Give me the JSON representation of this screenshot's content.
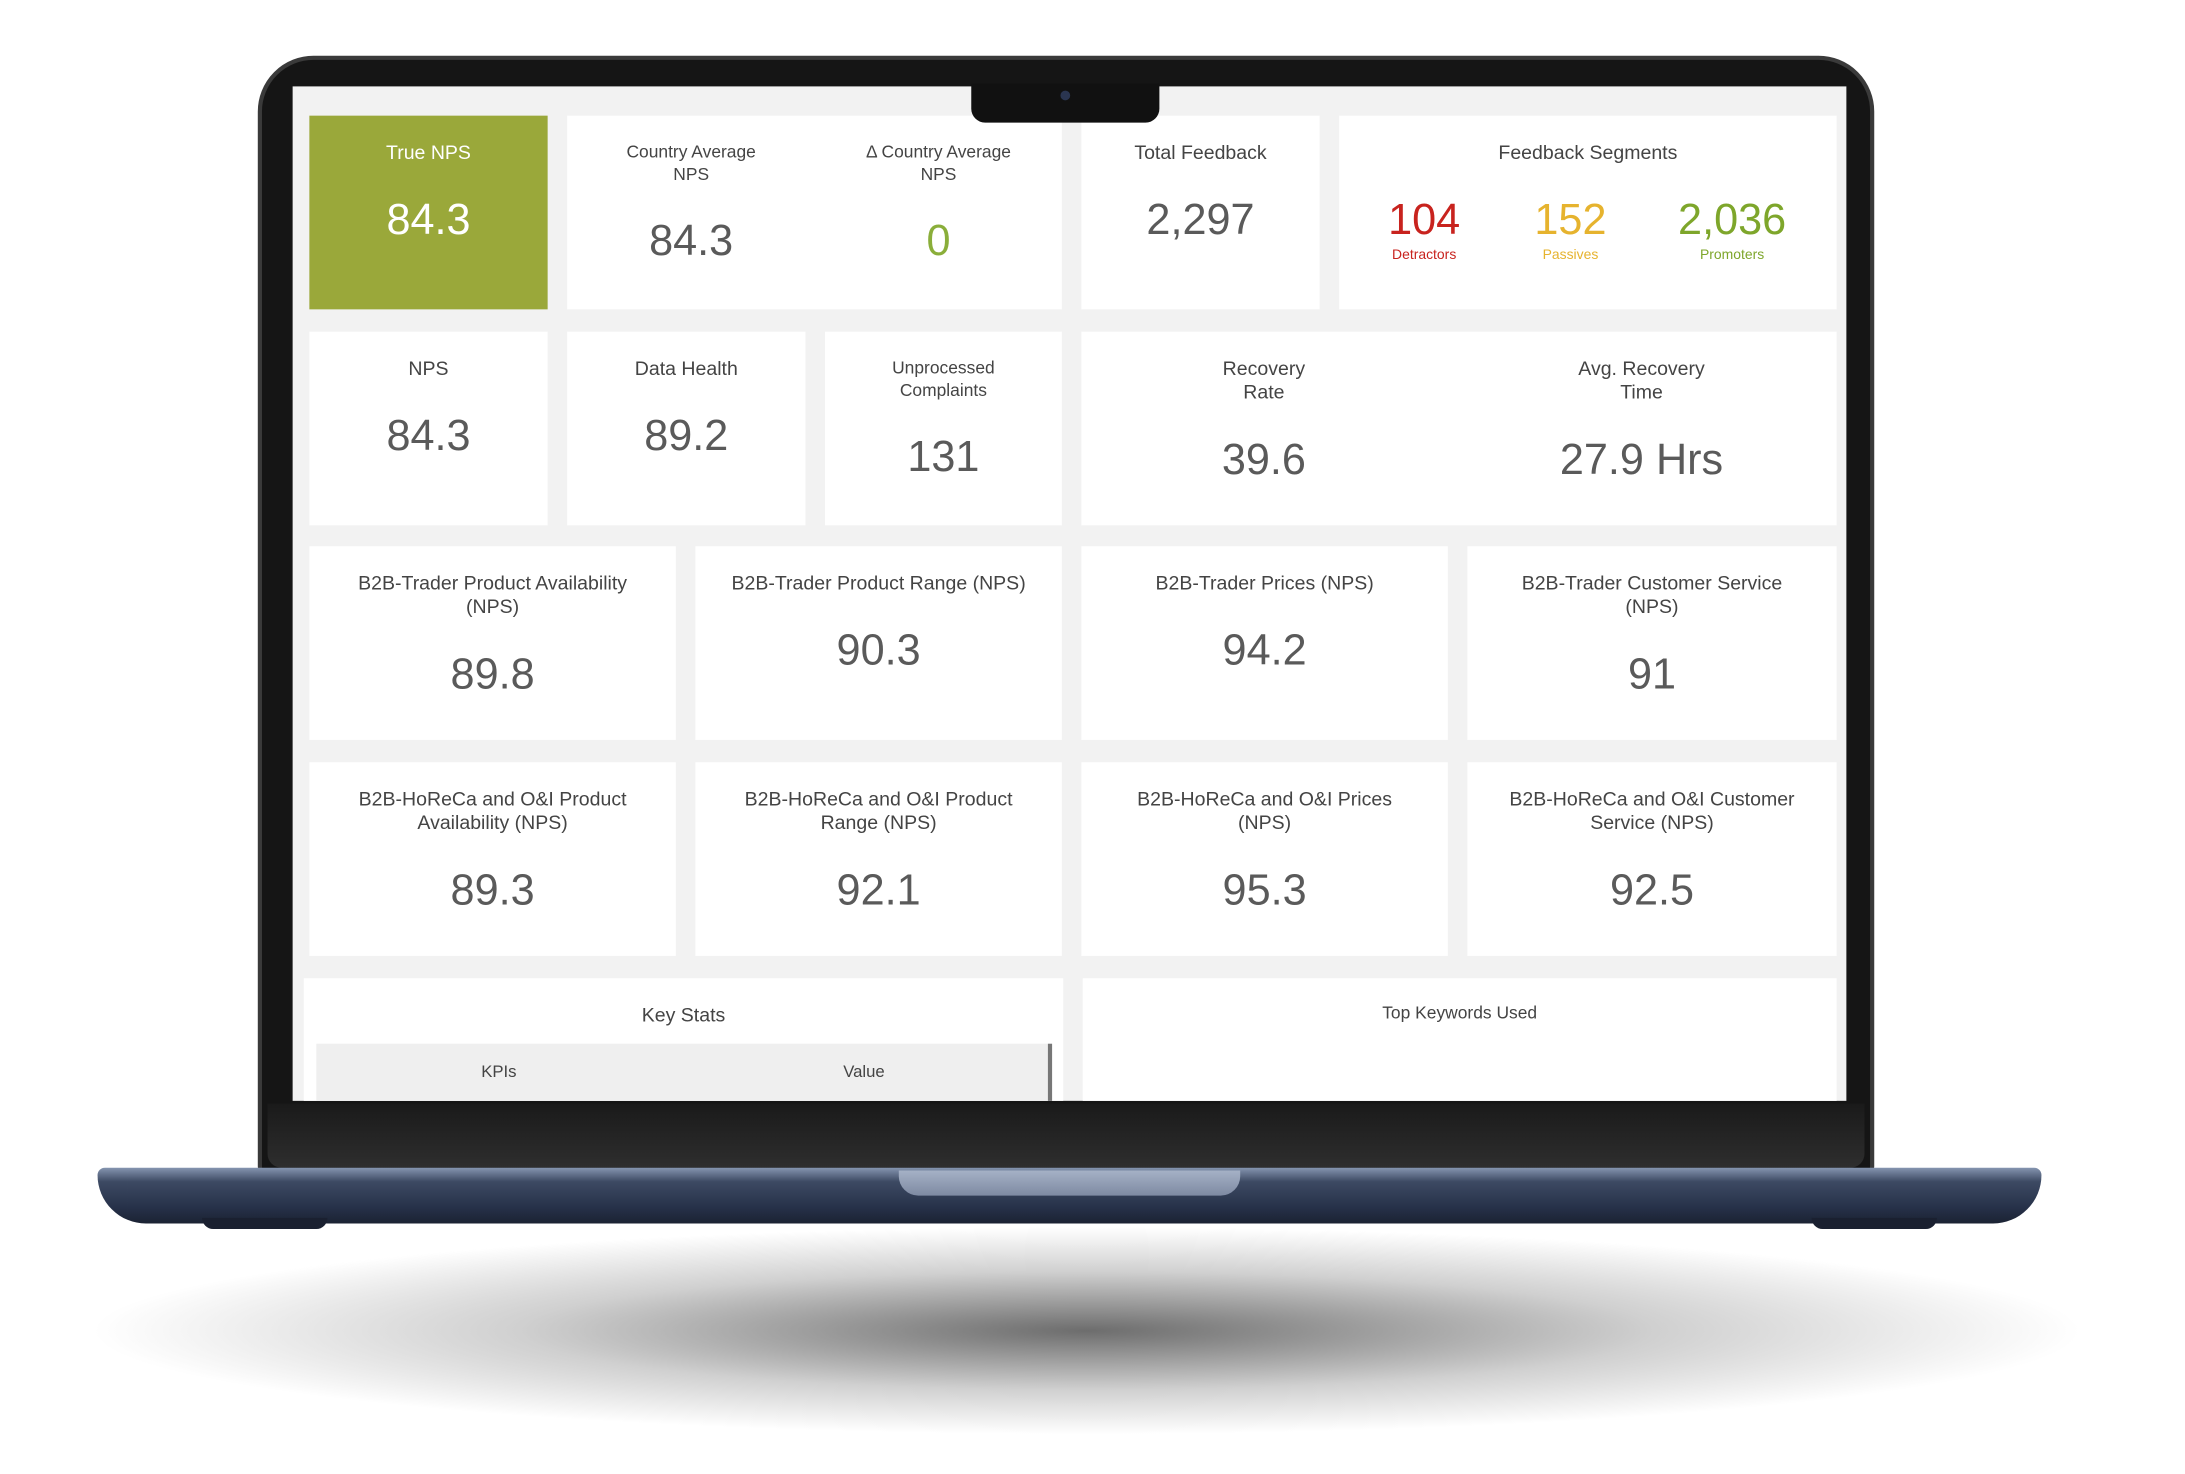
{
  "true_nps": {
    "title": [
      "True NPS"
    ],
    "value": "84.3"
  },
  "country_average": [
    {
      "title": [
        "Country Average",
        "NPS"
      ],
      "value": "84.3"
    },
    {
      "title": [
        "Δ Country Average",
        "NPS"
      ],
      "value": "0"
    }
  ],
  "total_feedback": {
    "title": [
      "Total Feedback"
    ],
    "value": "2,297"
  },
  "feedback_segments": {
    "title": "Feedback Segments",
    "segments": [
      {
        "value": "104",
        "label": "Detractors",
        "color": "#c8231e"
      },
      {
        "value": "152",
        "label": "Passives",
        "color": "#e6b32e"
      },
      {
        "value": "2,036",
        "label": "Promoters",
        "color": "#7ea62b"
      }
    ]
  },
  "overview": [
    {
      "title": [
        "NPS"
      ],
      "value": "84.3"
    },
    {
      "title": [
        "Data Health"
      ],
      "value": "89.2"
    },
    {
      "title": [
        "Unprocessed",
        "Complaints"
      ],
      "value": "131"
    }
  ],
  "recovery": [
    {
      "title": [
        "Recovery",
        "Rate"
      ],
      "value": "39.6"
    },
    {
      "title": [
        "Avg. Recovery",
        "Time"
      ],
      "value": "27.9 Hrs"
    }
  ],
  "b2b_trader": [
    {
      "title": [
        "B2B-Trader Product Availability",
        "(NPS)"
      ],
      "value": "89.8"
    },
    {
      "title": [
        "B2B-Trader Product Range (NPS)"
      ],
      "value": "90.3"
    },
    {
      "title": [
        "B2B-Trader Prices (NPS)"
      ],
      "value": "94.2"
    },
    {
      "title": [
        "B2B-Trader Customer Service",
        "(NPS)"
      ],
      "value": "91"
    }
  ],
  "b2b_horeca": [
    {
      "title": [
        "B2B-HoReCa and O&I Product",
        "Availability (NPS)"
      ],
      "value": "89.3"
    },
    {
      "title": [
        "B2B-HoReCa and O&I Product",
        "Range (NPS)"
      ],
      "value": "92.1"
    },
    {
      "title": [
        "B2B-HoReCa and O&I Prices",
        "(NPS)"
      ],
      "value": "95.3"
    },
    {
      "title": [
        "B2B-HoReCa and O&I Customer",
        "Service (NPS)"
      ],
      "value": "92.5"
    }
  ],
  "key_stats": {
    "title": "Key Stats",
    "columns": [
      "KPIs",
      "Value"
    ]
  },
  "top_keywords": {
    "title": "Top Keywords Used"
  }
}
